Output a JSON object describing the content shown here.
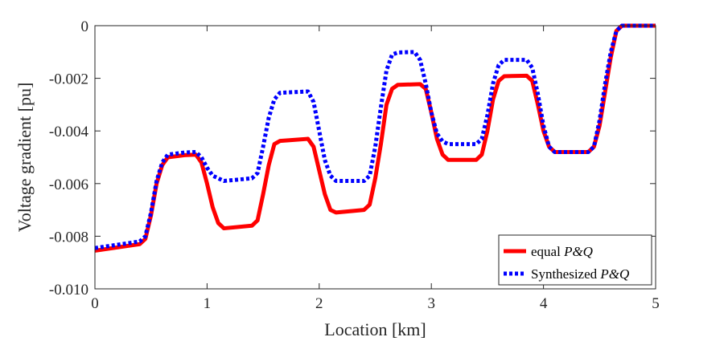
{
  "chart_data": {
    "type": "line",
    "title": "",
    "xlabel": "Location [km]",
    "ylabel": "Voltage gradient [pu]",
    "xlim": [
      0,
      5
    ],
    "ylim": [
      -0.01,
      0
    ],
    "x_ticks": [
      0,
      1,
      2,
      3,
      4,
      5
    ],
    "x_tick_labels": [
      "0",
      "1",
      "2",
      "3",
      "4",
      "5"
    ],
    "y_ticks": [
      0,
      -0.002,
      -0.004,
      -0.006,
      -0.008,
      -0.01
    ],
    "y_tick_labels": [
      "0",
      "-0.002",
      "-0.004",
      "-0.006",
      "-0.008",
      "-0.010"
    ],
    "grid": false,
    "legend_position": "bottom-right",
    "series": [
      {
        "name": "equal P&Q",
        "legend_prefix": "equal ",
        "legend_italic": "P&Q",
        "color": "#ff0000",
        "style": "solid",
        "points": [
          [
            0,
            -0.00855
          ],
          [
            0.4,
            -0.0083
          ],
          [
            0.45,
            -0.0081
          ],
          [
            0.5,
            -0.0072
          ],
          [
            0.55,
            -0.006
          ],
          [
            0.6,
            -0.0053
          ],
          [
            0.65,
            -0.005
          ],
          [
            0.8,
            -0.00492
          ],
          [
            0.9,
            -0.0049
          ],
          [
            0.95,
            -0.0052
          ],
          [
            1.0,
            -0.006
          ],
          [
            1.05,
            -0.0069
          ],
          [
            1.1,
            -0.0075
          ],
          [
            1.15,
            -0.0077
          ],
          [
            1.4,
            -0.0076
          ],
          [
            1.45,
            -0.0074
          ],
          [
            1.5,
            -0.0064
          ],
          [
            1.55,
            -0.0053
          ],
          [
            1.6,
            -0.0045
          ],
          [
            1.65,
            -0.00438
          ],
          [
            1.9,
            -0.0043
          ],
          [
            1.95,
            -0.0046
          ],
          [
            2.0,
            -0.0055
          ],
          [
            2.05,
            -0.0064
          ],
          [
            2.1,
            -0.007
          ],
          [
            2.15,
            -0.0071
          ],
          [
            2.4,
            -0.007
          ],
          [
            2.45,
            -0.0068
          ],
          [
            2.5,
            -0.0058
          ],
          [
            2.55,
            -0.0045
          ],
          [
            2.6,
            -0.003
          ],
          [
            2.65,
            -0.0024
          ],
          [
            2.7,
            -0.00225
          ],
          [
            2.9,
            -0.00222
          ],
          [
            2.95,
            -0.0024
          ],
          [
            3.0,
            -0.0033
          ],
          [
            3.05,
            -0.0043
          ],
          [
            3.1,
            -0.0049
          ],
          [
            3.15,
            -0.0051
          ],
          [
            3.4,
            -0.0051
          ],
          [
            3.45,
            -0.0049
          ],
          [
            3.5,
            -0.004
          ],
          [
            3.55,
            -0.0028
          ],
          [
            3.6,
            -0.0021
          ],
          [
            3.65,
            -0.00192
          ],
          [
            3.85,
            -0.0019
          ],
          [
            3.9,
            -0.0021
          ],
          [
            3.95,
            -0.003
          ],
          [
            4.0,
            -0.004
          ],
          [
            4.05,
            -0.0046
          ],
          [
            4.1,
            -0.0048
          ],
          [
            4.4,
            -0.0048
          ],
          [
            4.45,
            -0.0046
          ],
          [
            4.5,
            -0.0038
          ],
          [
            4.55,
            -0.0025
          ],
          [
            4.6,
            -0.0012
          ],
          [
            4.65,
            -0.0002
          ],
          [
            4.7,
            0
          ],
          [
            5,
            0
          ]
        ]
      },
      {
        "name": "Synthesized P&Q",
        "legend_prefix": "Synthesized ",
        "legend_italic": "P&Q",
        "color": "#0000ff",
        "style": "dotted",
        "points": [
          [
            0,
            -0.00845
          ],
          [
            0.4,
            -0.0082
          ],
          [
            0.45,
            -0.008
          ],
          [
            0.5,
            -0.0071
          ],
          [
            0.55,
            -0.0059
          ],
          [
            0.6,
            -0.0052
          ],
          [
            0.65,
            -0.0049
          ],
          [
            0.8,
            -0.00482
          ],
          [
            0.9,
            -0.0048
          ],
          [
            0.95,
            -0.005
          ],
          [
            1.0,
            -0.0054
          ],
          [
            1.05,
            -0.0057
          ],
          [
            1.1,
            -0.0058
          ],
          [
            1.15,
            -0.0059
          ],
          [
            1.4,
            -0.0058
          ],
          [
            1.45,
            -0.0056
          ],
          [
            1.5,
            -0.0046
          ],
          [
            1.55,
            -0.0035
          ],
          [
            1.6,
            -0.0028
          ],
          [
            1.65,
            -0.00255
          ],
          [
            1.9,
            -0.0025
          ],
          [
            1.95,
            -0.0029
          ],
          [
            2.0,
            -0.004
          ],
          [
            2.05,
            -0.0051
          ],
          [
            2.1,
            -0.0057
          ],
          [
            2.15,
            -0.0059
          ],
          [
            2.4,
            -0.0059
          ],
          [
            2.45,
            -0.0057
          ],
          [
            2.5,
            -0.0046
          ],
          [
            2.55,
            -0.0031
          ],
          [
            2.6,
            -0.0017
          ],
          [
            2.65,
            -0.0011
          ],
          [
            2.7,
            -0.00102
          ],
          [
            2.85,
            -0.001
          ],
          [
            2.9,
            -0.0013
          ],
          [
            2.95,
            -0.0022
          ],
          [
            3.0,
            -0.0033
          ],
          [
            3.05,
            -0.0041
          ],
          [
            3.1,
            -0.0044
          ],
          [
            3.15,
            -0.0045
          ],
          [
            3.4,
            -0.0045
          ],
          [
            3.45,
            -0.0043
          ],
          [
            3.5,
            -0.0034
          ],
          [
            3.55,
            -0.0022
          ],
          [
            3.6,
            -0.0015
          ],
          [
            3.65,
            -0.0013
          ],
          [
            3.85,
            -0.0013
          ],
          [
            3.9,
            -0.0016
          ],
          [
            3.95,
            -0.0026
          ],
          [
            4.0,
            -0.0038
          ],
          [
            4.05,
            -0.0046
          ],
          [
            4.1,
            -0.0048
          ],
          [
            4.4,
            -0.0048
          ],
          [
            4.45,
            -0.0046
          ],
          [
            4.5,
            -0.0036
          ],
          [
            4.55,
            -0.0022
          ],
          [
            4.6,
            -0.001
          ],
          [
            4.65,
            -0.0002
          ],
          [
            4.7,
            0
          ],
          [
            5,
            0
          ]
        ]
      }
    ]
  }
}
